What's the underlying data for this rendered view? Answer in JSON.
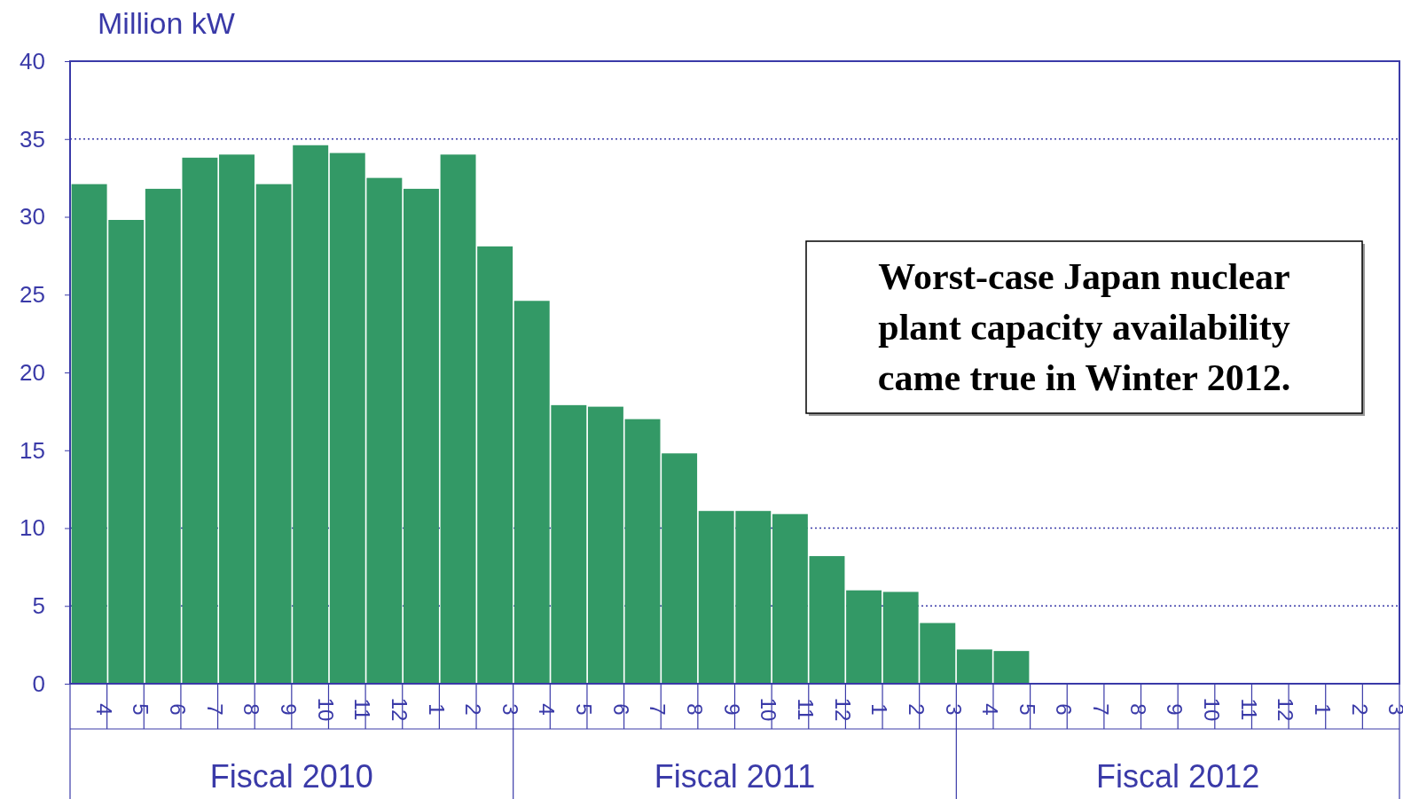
{
  "chart_data": {
    "type": "bar",
    "ylabel": "Million kW",
    "categories": [
      "4",
      "5",
      "6",
      "7",
      "8",
      "9",
      "10",
      "11",
      "12",
      "1",
      "2",
      "3",
      "4",
      "5",
      "6",
      "7",
      "8",
      "9",
      "10",
      "11",
      "12",
      "1",
      "2",
      "3",
      "4",
      "5",
      "6",
      "7",
      "8",
      "9",
      "10",
      "11",
      "12",
      "1",
      "2",
      "3"
    ],
    "values": [
      32.1,
      29.8,
      31.8,
      33.8,
      34.0,
      32.1,
      34.6,
      34.1,
      32.5,
      31.8,
      34.0,
      28.1,
      24.6,
      17.9,
      17.8,
      17.0,
      14.8,
      11.1,
      11.1,
      10.9,
      8.2,
      6.0,
      5.9,
      3.9,
      2.2,
      2.1,
      0,
      0,
      0,
      0,
      0,
      0,
      0,
      0,
      0,
      0
    ],
    "color": "#339966",
    "ylim": [
      0,
      40
    ],
    "yticks": [
      0,
      5,
      10,
      15,
      20,
      25,
      30,
      35,
      40
    ],
    "ref_lines": [
      {
        "axis": "y",
        "value": 35,
        "line_style": "dotted"
      },
      {
        "axis": "y",
        "value": 10,
        "line_style": "dotted"
      },
      {
        "axis": "y",
        "value": 5,
        "line_style": "dotted"
      }
    ],
    "annotations": [
      "Fiscal 2010",
      "Fiscal 2011",
      "Fiscal 2012",
      "Worst-case Japan nuclear plant capacity availability came true in Winter 2012."
    ]
  }
}
